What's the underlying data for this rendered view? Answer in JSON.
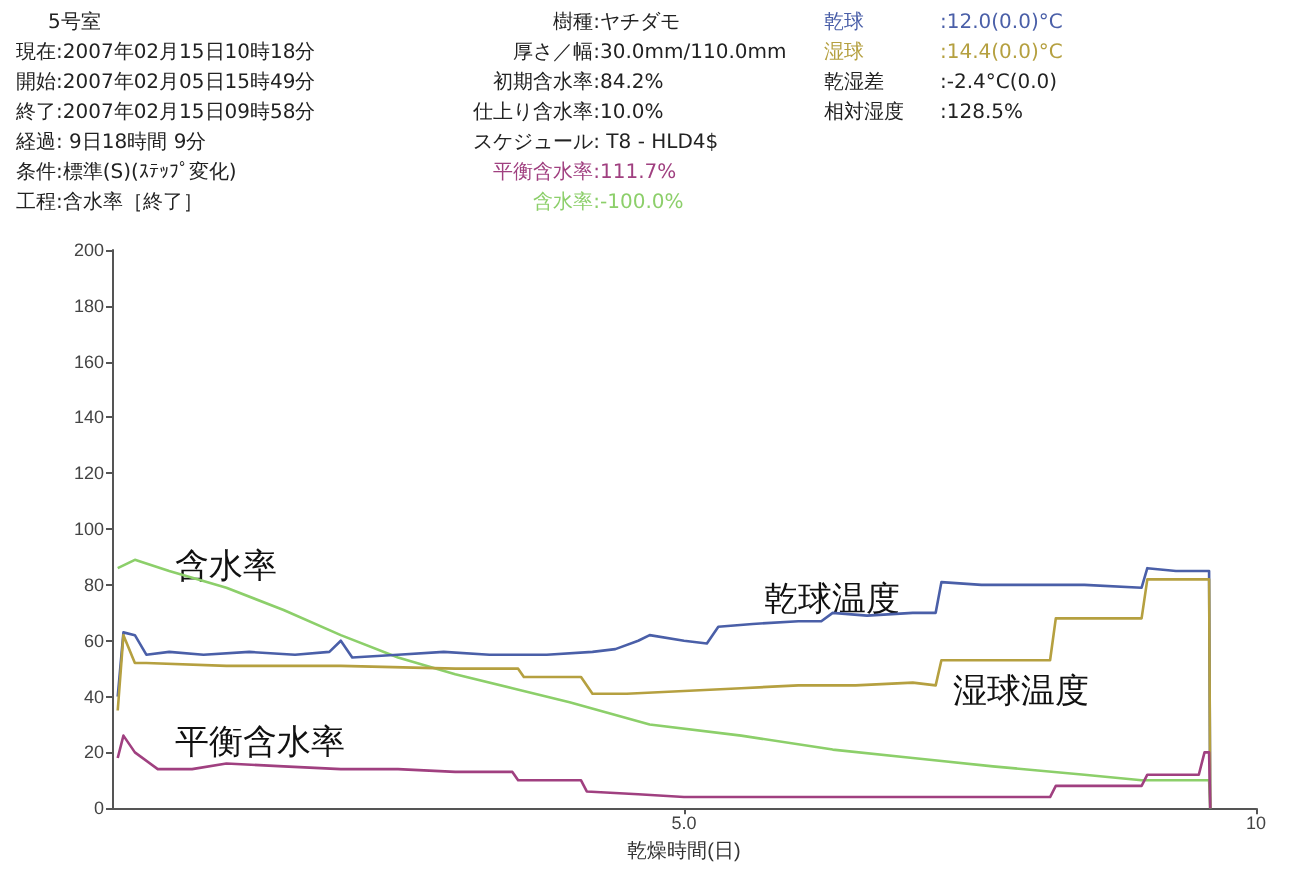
{
  "chart_data": {
    "type": "line",
    "xlabel": "乾燥時間(日)",
    "xlim": [
      0,
      10
    ],
    "xticks": [
      {
        "value": 5,
        "label": "5.0"
      },
      10
    ],
    "ylim": [
      0,
      200
    ],
    "yticks": [
      0,
      20,
      40,
      60,
      80,
      100,
      120,
      140,
      160,
      180,
      200
    ],
    "grid": false,
    "legend": false,
    "marker": "none",
    "line_style": "solid",
    "annotations": [
      "5号室",
      "現在:2007年02月15日10時18分",
      "開始:2007年02月05日15時49分",
      "終了:2007年02月15日09時58分",
      "経過: 9日18時間 9分",
      "条件:標準(S)(ｽﾃｯﾌﾟ変化)",
      "工程:含水率［終了］",
      "樹種:ヤチダモ",
      "厚さ／幅:30.0mm/110.0mm",
      "初期含水率:84.2%",
      "仕上り含水率:10.0%",
      "スケジュール: T8 - HLD4$",
      "平衡含水率:111.7%",
      "含水率:-100.0%",
      "乾球",
      "湿球",
      "乾湿差",
      "相対湿度",
      ":12.0(0.0)°C",
      ":14.4(0.0)°C",
      ":-2.4°C(0.0)",
      ":128.5%"
    ],
    "series": [
      {
        "name": "含水率",
        "color": "#8ccf6a",
        "x": [
          0.05,
          0.2,
          0.5,
          1.0,
          1.5,
          2.0,
          2.5,
          3.0,
          3.5,
          4.0,
          4.7,
          5.5,
          6.3,
          7.0,
          7.7,
          8.5,
          9.0,
          9.59,
          9.6
        ],
        "values": [
          86,
          89,
          85,
          79,
          71,
          62,
          54,
          48,
          43,
          38,
          30,
          26,
          21,
          18,
          15,
          12,
          10,
          10,
          0
        ]
      },
      {
        "name": "乾球温度",
        "color": "#4a5fa8",
        "x": [
          0.05,
          0.1,
          0.2,
          0.3,
          0.5,
          0.8,
          1.2,
          1.6,
          1.9,
          2.0,
          2.1,
          2.5,
          2.9,
          3.3,
          3.8,
          4.2,
          4.4,
          4.6,
          4.7,
          5.0,
          5.2,
          5.3,
          5.6,
          6.0,
          6.2,
          6.3,
          6.6,
          7.0,
          7.2,
          7.25,
          7.6,
          8.0,
          8.5,
          9.0,
          9.05,
          9.3,
          9.59,
          9.6
        ],
        "values": [
          40,
          63,
          62,
          55,
          56,
          55,
          56,
          55,
          56,
          60,
          54,
          55,
          56,
          55,
          55,
          56,
          57,
          60,
          62,
          60,
          59,
          65,
          66,
          67,
          67,
          70,
          69,
          70,
          70,
          81,
          80,
          80,
          80,
          79,
          86,
          85,
          85,
          0
        ]
      },
      {
        "name": "湿球温度",
        "color": "#b5a040",
        "x": [
          0.05,
          0.1,
          0.2,
          0.3,
          1.0,
          2.0,
          3.0,
          3.55,
          3.6,
          4.1,
          4.2,
          4.5,
          5.0,
          5.5,
          6.0,
          6.5,
          7.0,
          7.2,
          7.25,
          7.8,
          8.2,
          8.25,
          8.7,
          9.0,
          9.05,
          9.59,
          9.6
        ],
        "values": [
          35,
          62,
          52,
          52,
          51,
          51,
          50,
          50,
          47,
          47,
          41,
          41,
          42,
          43,
          44,
          44,
          45,
          44,
          53,
          53,
          53,
          68,
          68,
          68,
          82,
          82,
          0
        ]
      },
      {
        "name": "平衡含水率",
        "color": "#a04080",
        "x": [
          0.05,
          0.1,
          0.2,
          0.4,
          0.7,
          1.0,
          1.5,
          2.0,
          2.5,
          3.0,
          3.5,
          3.55,
          4.1,
          4.15,
          4.6,
          5.0,
          6.0,
          7.0,
          8.2,
          8.25,
          9.0,
          9.05,
          9.5,
          9.55,
          9.59,
          9.6
        ],
        "values": [
          18,
          26,
          20,
          14,
          14,
          16,
          15,
          14,
          14,
          13,
          13,
          10,
          10,
          6,
          5,
          4,
          4,
          4,
          4,
          8,
          8,
          12,
          12,
          20,
          20,
          0
        ]
      }
    ]
  }
}
